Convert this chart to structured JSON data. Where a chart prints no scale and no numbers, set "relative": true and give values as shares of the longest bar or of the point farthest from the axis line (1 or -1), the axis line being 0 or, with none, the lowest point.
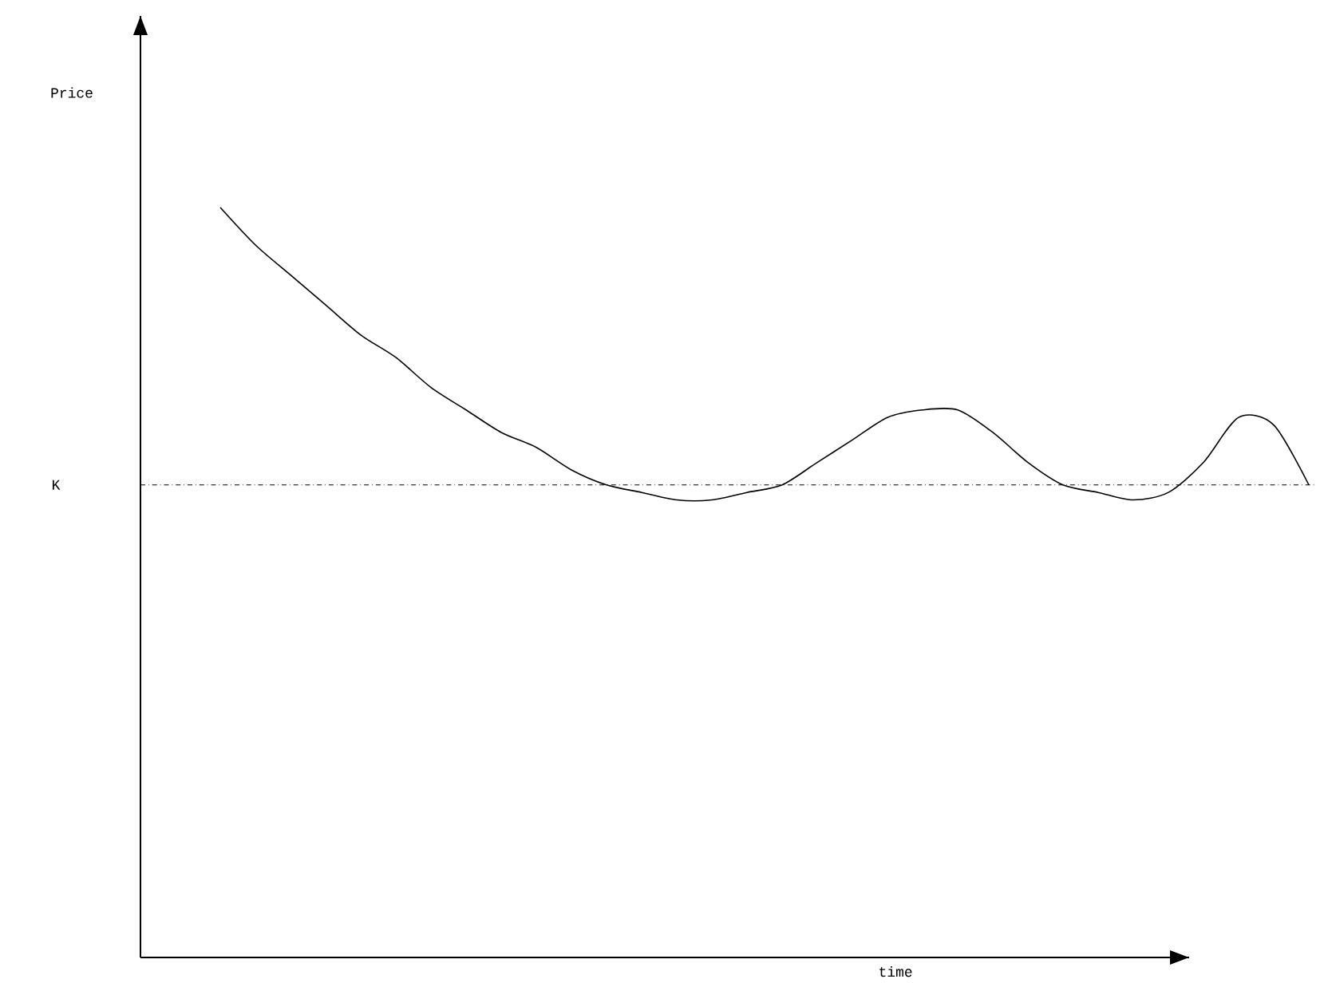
{
  "chart_data": {
    "type": "line",
    "xlabel": "time",
    "annotations": [
      "Price"
    ],
    "relative": true,
    "color": "#000000",
    "categories": [
      null,
      null,
      null,
      null,
      null,
      null,
      null,
      null,
      null,
      null,
      null,
      null,
      null,
      null,
      null,
      null,
      null,
      null,
      null,
      null,
      null,
      null,
      null,
      null,
      null,
      null,
      null,
      null,
      null,
      null,
      null,
      null
    ],
    "values": [
      1.0,
      0.95,
      0.91,
      0.87,
      0.83,
      0.8,
      0.76,
      0.73,
      0.7,
      0.68,
      0.65,
      0.63,
      0.62,
      0.61,
      0.61,
      0.62,
      0.63,
      0.66,
      0.69,
      0.72,
      0.73,
      0.73,
      0.7,
      0.66,
      0.63,
      0.62,
      0.61,
      0.62,
      0.66,
      0.72,
      0.71,
      0.63
    ],
    "ref_lines": [
      {
        "axis": "y",
        "value": 0.63,
        "label": "K",
        "line_style": "dashdot"
      }
    ]
  }
}
